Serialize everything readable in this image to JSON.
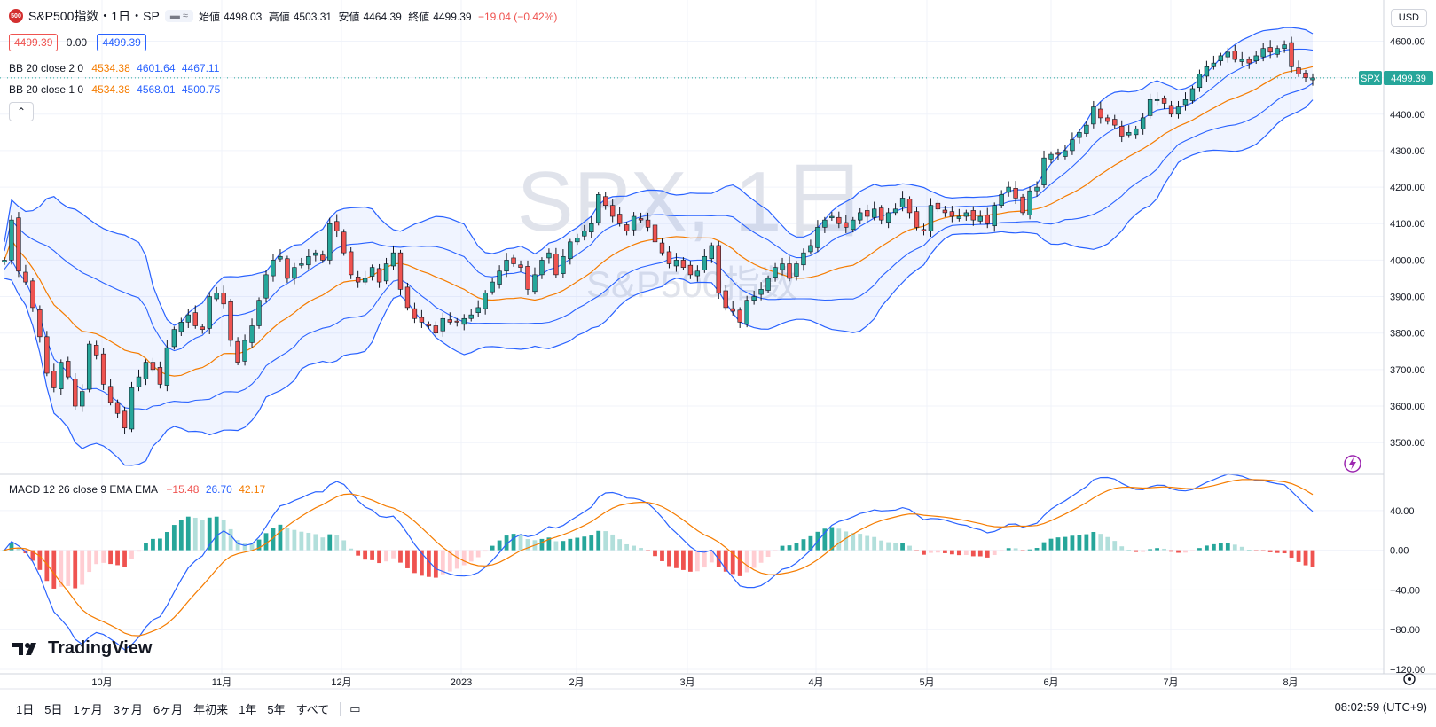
{
  "header": {
    "badge": "500",
    "title": "S&P500指数・1日・SP",
    "open_label": "始値",
    "open": "4498.03",
    "high_label": "高値",
    "high": "4503.31",
    "low_label": "安値",
    "low": "4464.39",
    "close_label": "終値",
    "close": "4499.39",
    "change": "−19.04 (−0.42%)",
    "bid": "4499.39",
    "spread": "0.00",
    "ask": "4499.39"
  },
  "indicators": {
    "bb2": {
      "label": "BB 20 close 2 0",
      "basis": "4534.38",
      "upper": "4601.64",
      "lower": "4467.11"
    },
    "bb1": {
      "label": "BB 20 close 1 0",
      "basis": "4534.38",
      "upper": "4568.01",
      "lower": "4500.75"
    },
    "macd": {
      "label": "MACD 12 26 close 9 EMA EMA",
      "hist": "−15.48",
      "macd": "26.70",
      "signal": "42.17"
    }
  },
  "watermark": {
    "main": "SPX, 1日",
    "sub": "S&P500指数"
  },
  "price_axis": {
    "currency": "USD",
    "last_tag": "SPX",
    "last_price": "4499.39"
  },
  "timeframes": [
    "1日",
    "5日",
    "1ヶ月",
    "3ヶ月",
    "6ヶ月",
    "年初来",
    "1年",
    "5年",
    "すべて"
  ],
  "clock": "08:02:59 (UTC+9)",
  "brand": "TradingView",
  "colors": {
    "up": "#26a69a",
    "down": "#ef5350",
    "band": "#2962ff",
    "basis": "#f57c00",
    "macd": "#2962ff",
    "signal": "#f57c00"
  },
  "chart_data": [
    {
      "type": "candlestick",
      "title": "SPX, 1日",
      "y_ticks": [
        3500,
        3600,
        3700,
        3800,
        3900,
        4000,
        4100,
        4200,
        4300,
        4400,
        4500,
        4600
      ],
      "ylim": [
        3430,
        4640
      ],
      "x_labels": [
        "10月",
        "11月",
        "12月",
        "2023",
        "2月",
        "3月",
        "4月",
        "5月",
        "6月",
        "7月",
        "8月"
      ],
      "close_series": [
        4000,
        4110,
        3970,
        3940,
        3870,
        3790,
        3690,
        3650,
        3720,
        3680,
        3600,
        3640,
        3770,
        3740,
        3660,
        3610,
        3580,
        3540,
        3650,
        3680,
        3720,
        3700,
        3660,
        3760,
        3810,
        3830,
        3850,
        3820,
        3810,
        3900,
        3910,
        3880,
        3780,
        3720,
        3780,
        3820,
        3890,
        3960,
        4000,
        4010,
        3950,
        3980,
        3990,
        4010,
        4020,
        4000,
        4100,
        4080,
        4020,
        3960,
        3940,
        3950,
        3980,
        3940,
        3990,
        4020,
        3920,
        3870,
        3840,
        3830,
        3820,
        3800,
        3840,
        3830,
        3830,
        3840,
        3850,
        3870,
        3910,
        3940,
        3970,
        4000,
        3990,
        3980,
        3920,
        3960,
        4000,
        4020,
        3960,
        4010,
        4050,
        4060,
        4080,
        4100,
        4180,
        4150,
        4120,
        4100,
        4080,
        4120,
        4110,
        4090,
        4050,
        4020,
        3990,
        4000,
        3980,
        3960,
        3970,
        4010,
        4040,
        3910,
        3870,
        3860,
        3830,
        3890,
        3900,
        3920,
        3950,
        3980,
        3990,
        3950,
        3990,
        4020,
        4040,
        4090,
        4110,
        4120,
        4100,
        4090,
        4110,
        4130,
        4120,
        4140,
        4110,
        4130,
        4140,
        4170,
        4130,
        4090,
        4080,
        4150,
        4140,
        4130,
        4120,
        4120,
        4130,
        4110,
        4120,
        4100,
        4150,
        4180,
        4200,
        4170,
        4130,
        4190,
        4200,
        4280,
        4290,
        4290,
        4300,
        4330,
        4350,
        4370,
        4420,
        4390,
        4380,
        4370,
        4340,
        4350,
        4360,
        4390,
        4440,
        4440,
        4430,
        4400,
        4420,
        4440,
        4470,
        4510,
        4530,
        4540,
        4560,
        4570,
        4550,
        4550,
        4540,
        4560,
        4580,
        4570,
        4580,
        4590,
        4530,
        4510,
        4500,
        4499.39
      ],
      "bb_basis_end": 4534.38,
      "bb2_upper_end": 4601.64,
      "bb2_lower_end": 4467.11,
      "bb1_upper_end": 4568.01,
      "bb1_lower_end": 4500.75,
      "last_price": 4499.39
    },
    {
      "type": "macd",
      "y_ticks": [
        40,
        0,
        -40,
        -80,
        -120
      ],
      "ylim": [
        -120,
        72
      ],
      "last_macd": 26.7,
      "last_signal": 42.17,
      "last_hist": -15.48
    }
  ]
}
